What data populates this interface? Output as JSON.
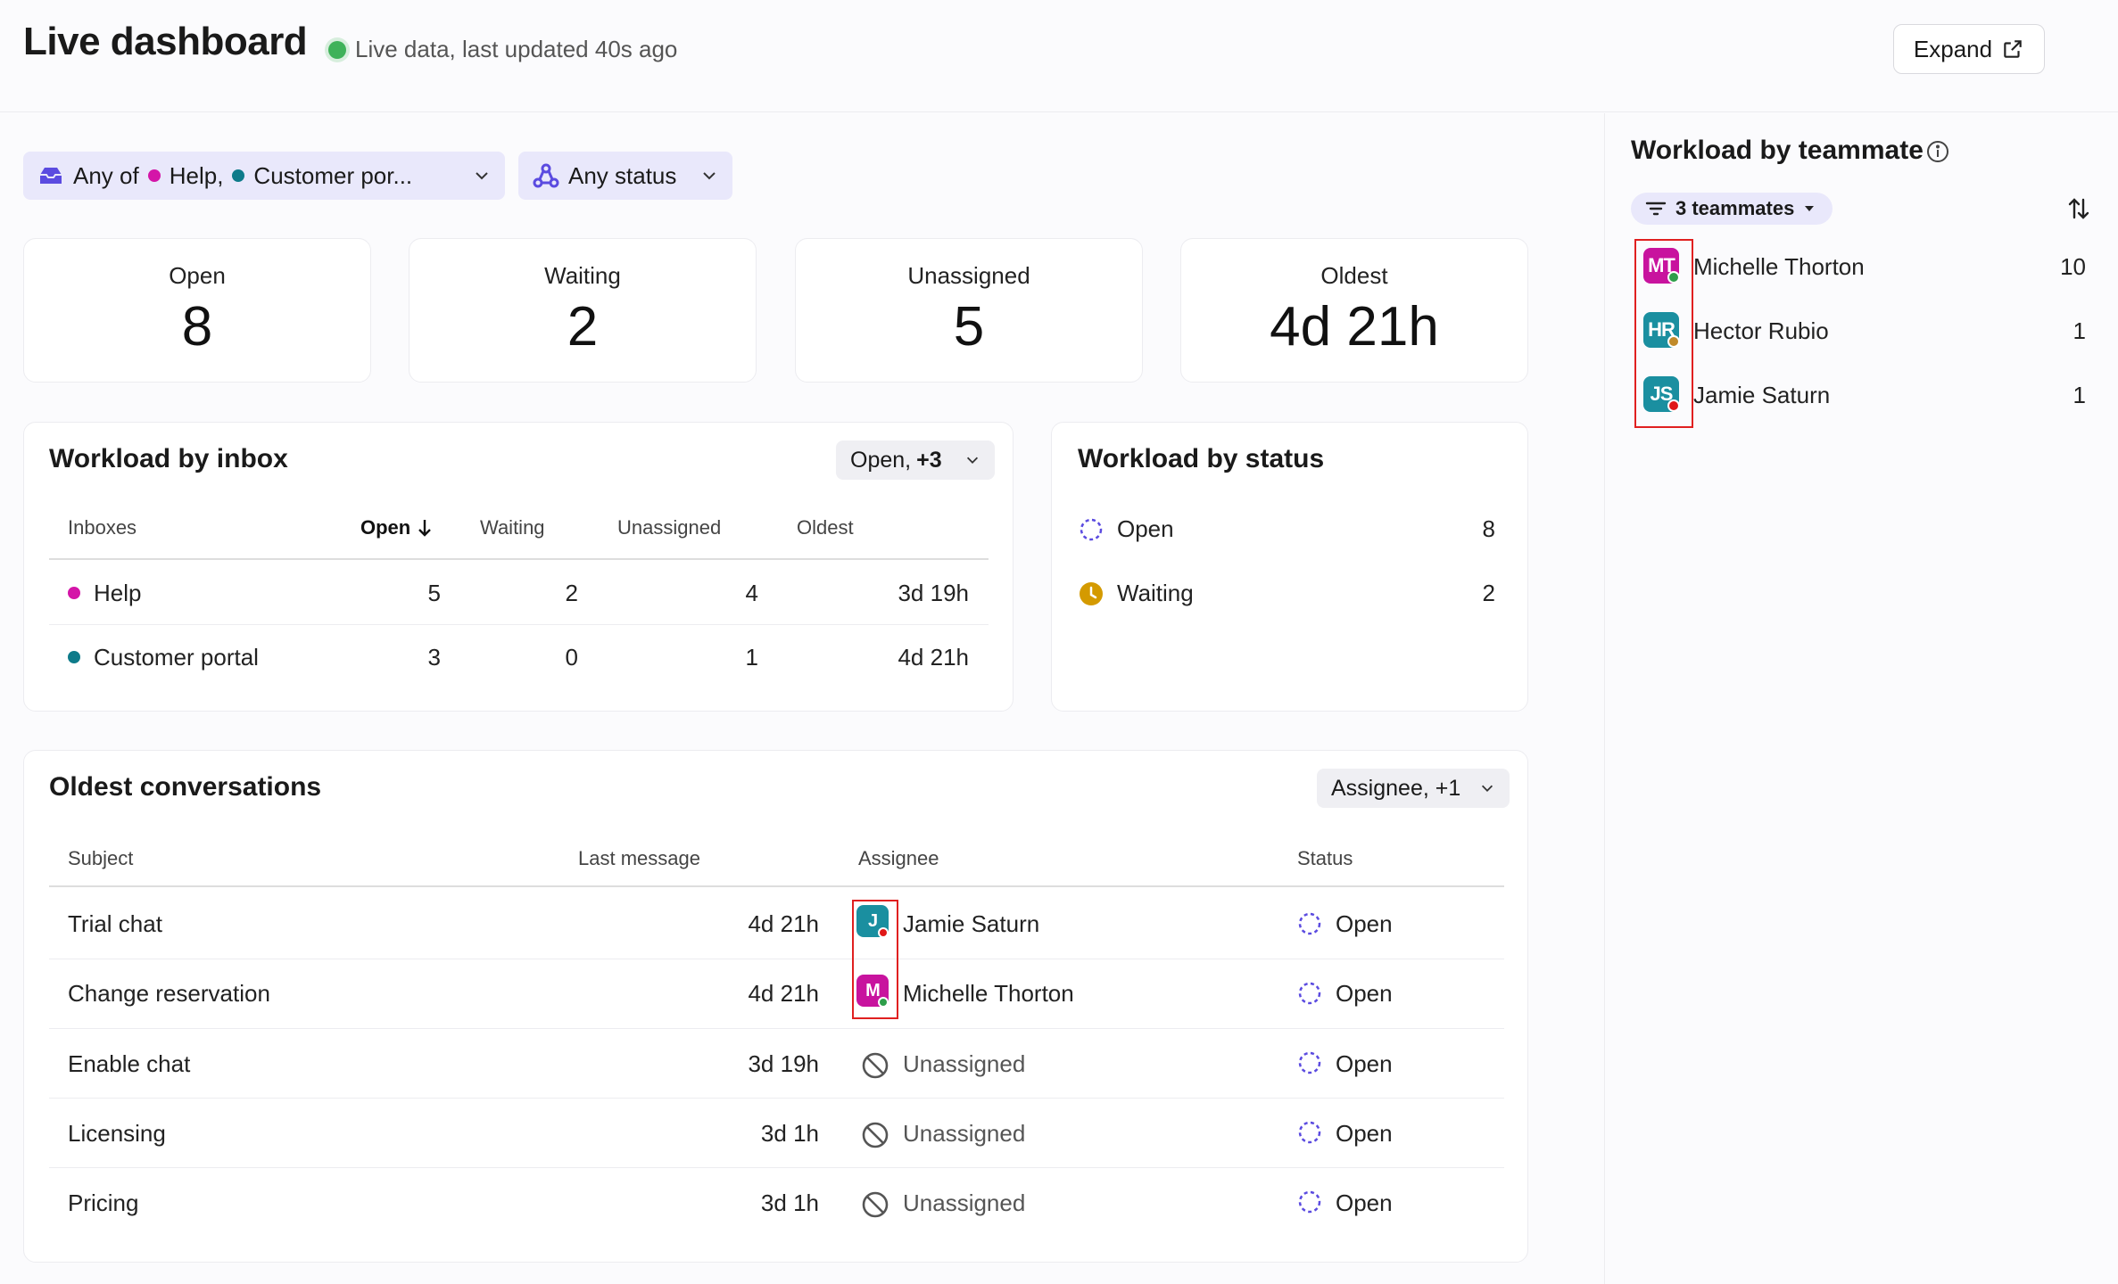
{
  "header": {
    "title": "Live dashboard",
    "live_text": "Live data, last updated 40s ago",
    "expand_label": "Expand"
  },
  "filters": {
    "inbox_prefix": "Any of",
    "inbox_1": "Help,",
    "inbox_2": "Customer por...",
    "status": "Any status"
  },
  "stats": [
    {
      "label": "Open",
      "value": "8"
    },
    {
      "label": "Waiting",
      "value": "2"
    },
    {
      "label": "Unassigned",
      "value": "5"
    },
    {
      "label": "Oldest",
      "value": "4d 21h"
    }
  ],
  "workload_inbox": {
    "title": "Workload by inbox",
    "select": "Open,",
    "select_extra": "+3",
    "columns": [
      "Inboxes",
      "Open",
      "Waiting",
      "Unassigned",
      "Oldest"
    ],
    "rows": [
      {
        "name": "Help",
        "open": "5",
        "waiting": "2",
        "unassigned": "4",
        "oldest": "3d 19h",
        "color": "#d415a8"
      },
      {
        "name": "Customer portal",
        "open": "3",
        "waiting": "0",
        "unassigned": "1",
        "oldest": "4d 21h",
        "color": "#0e7b8a"
      }
    ]
  },
  "workload_status": {
    "title": "Workload by status",
    "rows": [
      {
        "label": "Open",
        "value": "8"
      },
      {
        "label": "Waiting",
        "value": "2"
      }
    ]
  },
  "oldest": {
    "title": "Oldest conversations",
    "select": "Assignee, +1",
    "columns": [
      "Subject",
      "Last message",
      "Assignee",
      "Status"
    ],
    "rows": [
      {
        "subject": "Trial chat",
        "last": "4d 21h",
        "assignee": "Jamie Saturn",
        "initial": "J",
        "status": "Open"
      },
      {
        "subject": "Change reservation",
        "last": "4d 21h",
        "assignee": "Michelle Thorton",
        "initial": "M",
        "status": "Open"
      },
      {
        "subject": "Enable chat",
        "last": "3d 19h",
        "assignee": "Unassigned",
        "initial": "",
        "status": "Open"
      },
      {
        "subject": "Licensing",
        "last": "3d 1h",
        "assignee": "Unassigned",
        "initial": "",
        "status": "Open"
      },
      {
        "subject": "Pricing",
        "last": "3d 1h",
        "assignee": "Unassigned",
        "initial": "",
        "status": "Open"
      }
    ]
  },
  "teammates": {
    "title": "Workload by teammate",
    "filter_label": "3 teammates",
    "rows": [
      {
        "initials": "MT",
        "name": "Michelle Thorton",
        "count": "10"
      },
      {
        "initials": "HR",
        "name": "Hector Rubio",
        "count": "1"
      },
      {
        "initials": "JS",
        "name": "Jamie Saturn",
        "count": "1"
      }
    ]
  },
  "colors": {
    "accent": "#5b4be0",
    "pink": "#d415a8",
    "teal": "#0e7b8a",
    "waiting": "#d49a00",
    "live": "#3fb25a"
  }
}
